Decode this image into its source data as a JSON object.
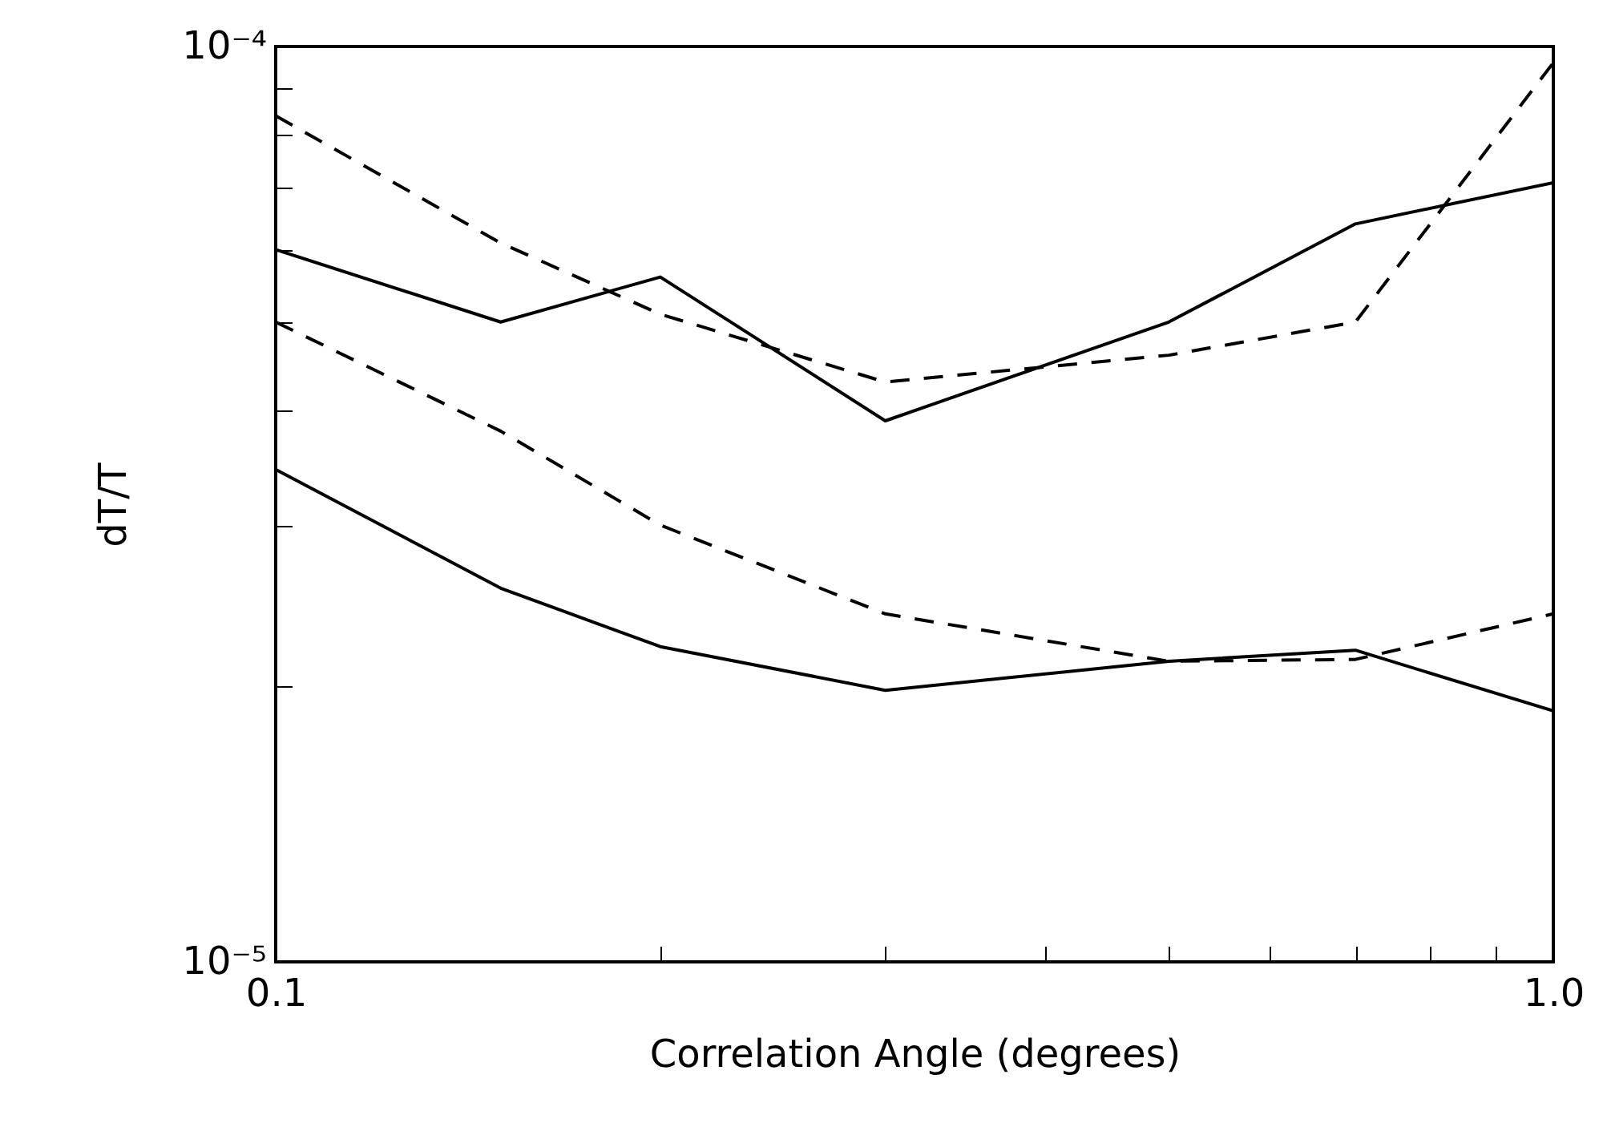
{
  "chart_data": {
    "type": "line",
    "xlabel": "Correlation Angle (degrees)",
    "ylabel": "dT/T",
    "log": "xy",
    "x": [
      0.1,
      0.15,
      0.2,
      0.3,
      0.5,
      0.7,
      1.0
    ],
    "xlim": [
      0.1,
      1.0
    ],
    "ylim": [
      1e-05,
      0.0001
    ],
    "xticks": [
      {
        "value": 0.1,
        "label": "0.1"
      },
      {
        "value": 0.2,
        "label": null
      },
      {
        "value": 0.3,
        "label": null
      },
      {
        "value": 0.4,
        "label": null
      },
      {
        "value": 0.5,
        "label": null
      },
      {
        "value": 0.6,
        "label": null
      },
      {
        "value": 0.7,
        "label": null
      },
      {
        "value": 0.8,
        "label": null
      },
      {
        "value": 0.9,
        "label": null
      },
      {
        "value": 1.0,
        "label": "1.0"
      }
    ],
    "yticks": [
      {
        "value": 1e-05,
        "label": "10⁻⁵"
      },
      {
        "value": 2e-05,
        "label": null
      },
      {
        "value": 3e-05,
        "label": null
      },
      {
        "value": 4e-05,
        "label": null
      },
      {
        "value": 5e-05,
        "label": null
      },
      {
        "value": 6e-05,
        "label": null
      },
      {
        "value": 7e-05,
        "label": null
      },
      {
        "value": 8e-05,
        "label": null
      },
      {
        "value": 9e-05,
        "label": null
      },
      {
        "value": 0.0001,
        "label": "10⁻⁴"
      }
    ],
    "series": [
      {
        "color": "#000000",
        "line_style": "solid",
        "values": [
          6e-05,
          5e-05,
          5.6e-05,
          3.9e-05,
          5e-05,
          6.4e-05,
          7.1e-05
        ]
      },
      {
        "color": "#000000",
        "line_style": "dashed",
        "values": [
          8.4e-05,
          6.1e-05,
          5.1e-05,
          4.3e-05,
          4.6e-05,
          5e-05,
          9.6e-05
        ]
      },
      {
        "color": "#000000",
        "line_style": "dashed",
        "values": [
          5e-05,
          3.8e-05,
          3e-05,
          2.4e-05,
          2.13e-05,
          2.14e-05,
          2.4e-05
        ]
      },
      {
        "color": "#000000",
        "line_style": "solid",
        "values": [
          3.45e-05,
          2.56e-05,
          2.21e-05,
          1.98e-05,
          2.13e-05,
          2.19e-05,
          1.88e-05
        ]
      }
    ]
  }
}
